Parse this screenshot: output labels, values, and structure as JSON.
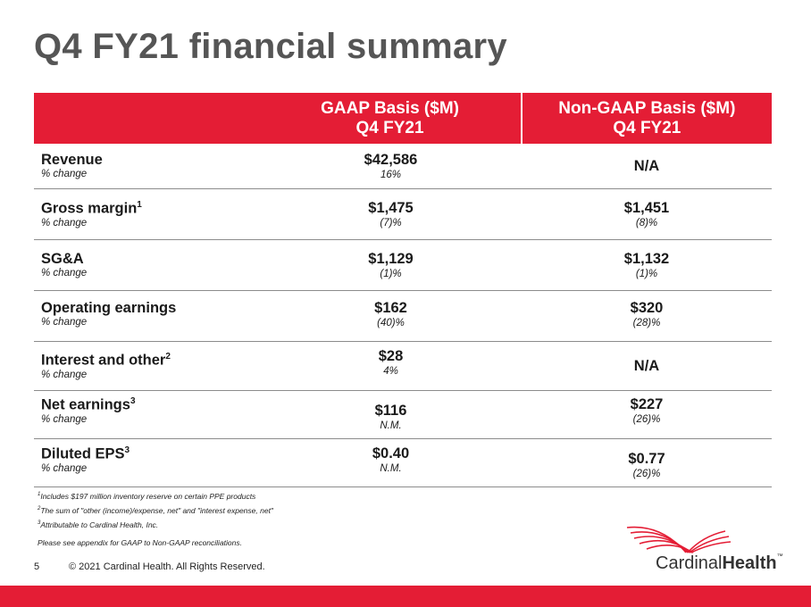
{
  "title": "Q4 FY21 financial summary",
  "header": {
    "gaap_line1": "GAAP Basis ($M)",
    "gaap_line2": "Q4 FY21",
    "nongaap_line1": "Non-GAAP Basis ($M)",
    "nongaap_line2": "Q4 FY21"
  },
  "rows": [
    {
      "label": "Revenue",
      "sup": "",
      "sub": "% change",
      "gaap": "$42,586",
      "gaap_pct": "16%",
      "nongaap": "N/A",
      "nongaap_pct": ""
    },
    {
      "label": "Gross margin",
      "sup": "1",
      "sub": "% change",
      "gaap": "$1,475",
      "gaap_pct": "(7)%",
      "nongaap": "$1,451",
      "nongaap_pct": "(8)%"
    },
    {
      "label": "SG&A",
      "sup": "",
      "sub": "% change",
      "gaap": "$1,129",
      "gaap_pct": "(1)%",
      "nongaap": "$1,132",
      "nongaap_pct": "(1)%"
    },
    {
      "label": "Operating earnings",
      "sup": "",
      "sub": "% change",
      "gaap": "$162",
      "gaap_pct": "(40)%",
      "nongaap": "$320",
      "nongaap_pct": "(28)%"
    },
    {
      "label": "Interest and other",
      "sup": "2",
      "sub": "% change",
      "gaap": "$28",
      "gaap_pct": "4%",
      "nongaap": "N/A",
      "nongaap_pct": ""
    },
    {
      "label": "Net earnings",
      "sup": "3",
      "sub": "% change",
      "gaap": "$116",
      "gaap_pct": "N.M.",
      "nongaap": "$227",
      "nongaap_pct": "(26)%"
    },
    {
      "label": "Diluted EPS",
      "sup": "3",
      "sub": "% change",
      "gaap": "$0.40",
      "gaap_pct": "N.M.",
      "nongaap": "$0.77",
      "nongaap_pct": "(26)%"
    }
  ],
  "footnotes": {
    "fn1_num": "1",
    "fn1": "Includes $197 million inventory reserve on certain PPE products",
    "fn2_num": "2",
    "fn2": "The sum of \"other (income)/expense, net\" and \"interest expense, net\"",
    "fn3_num": "3",
    "fn3": "Attributable to Cardinal Health, Inc."
  },
  "appendix_note": "Please see appendix for GAAP to Non-GAAP reconciliations.",
  "page_number": "5",
  "copyright": "© 2021 Cardinal Health. All Rights Reserved.",
  "logo": {
    "part1": "Cardinal",
    "part2": "Health",
    "tm": "™"
  },
  "colors": {
    "brand_red": "#e41d35",
    "title_gray": "#555555"
  }
}
